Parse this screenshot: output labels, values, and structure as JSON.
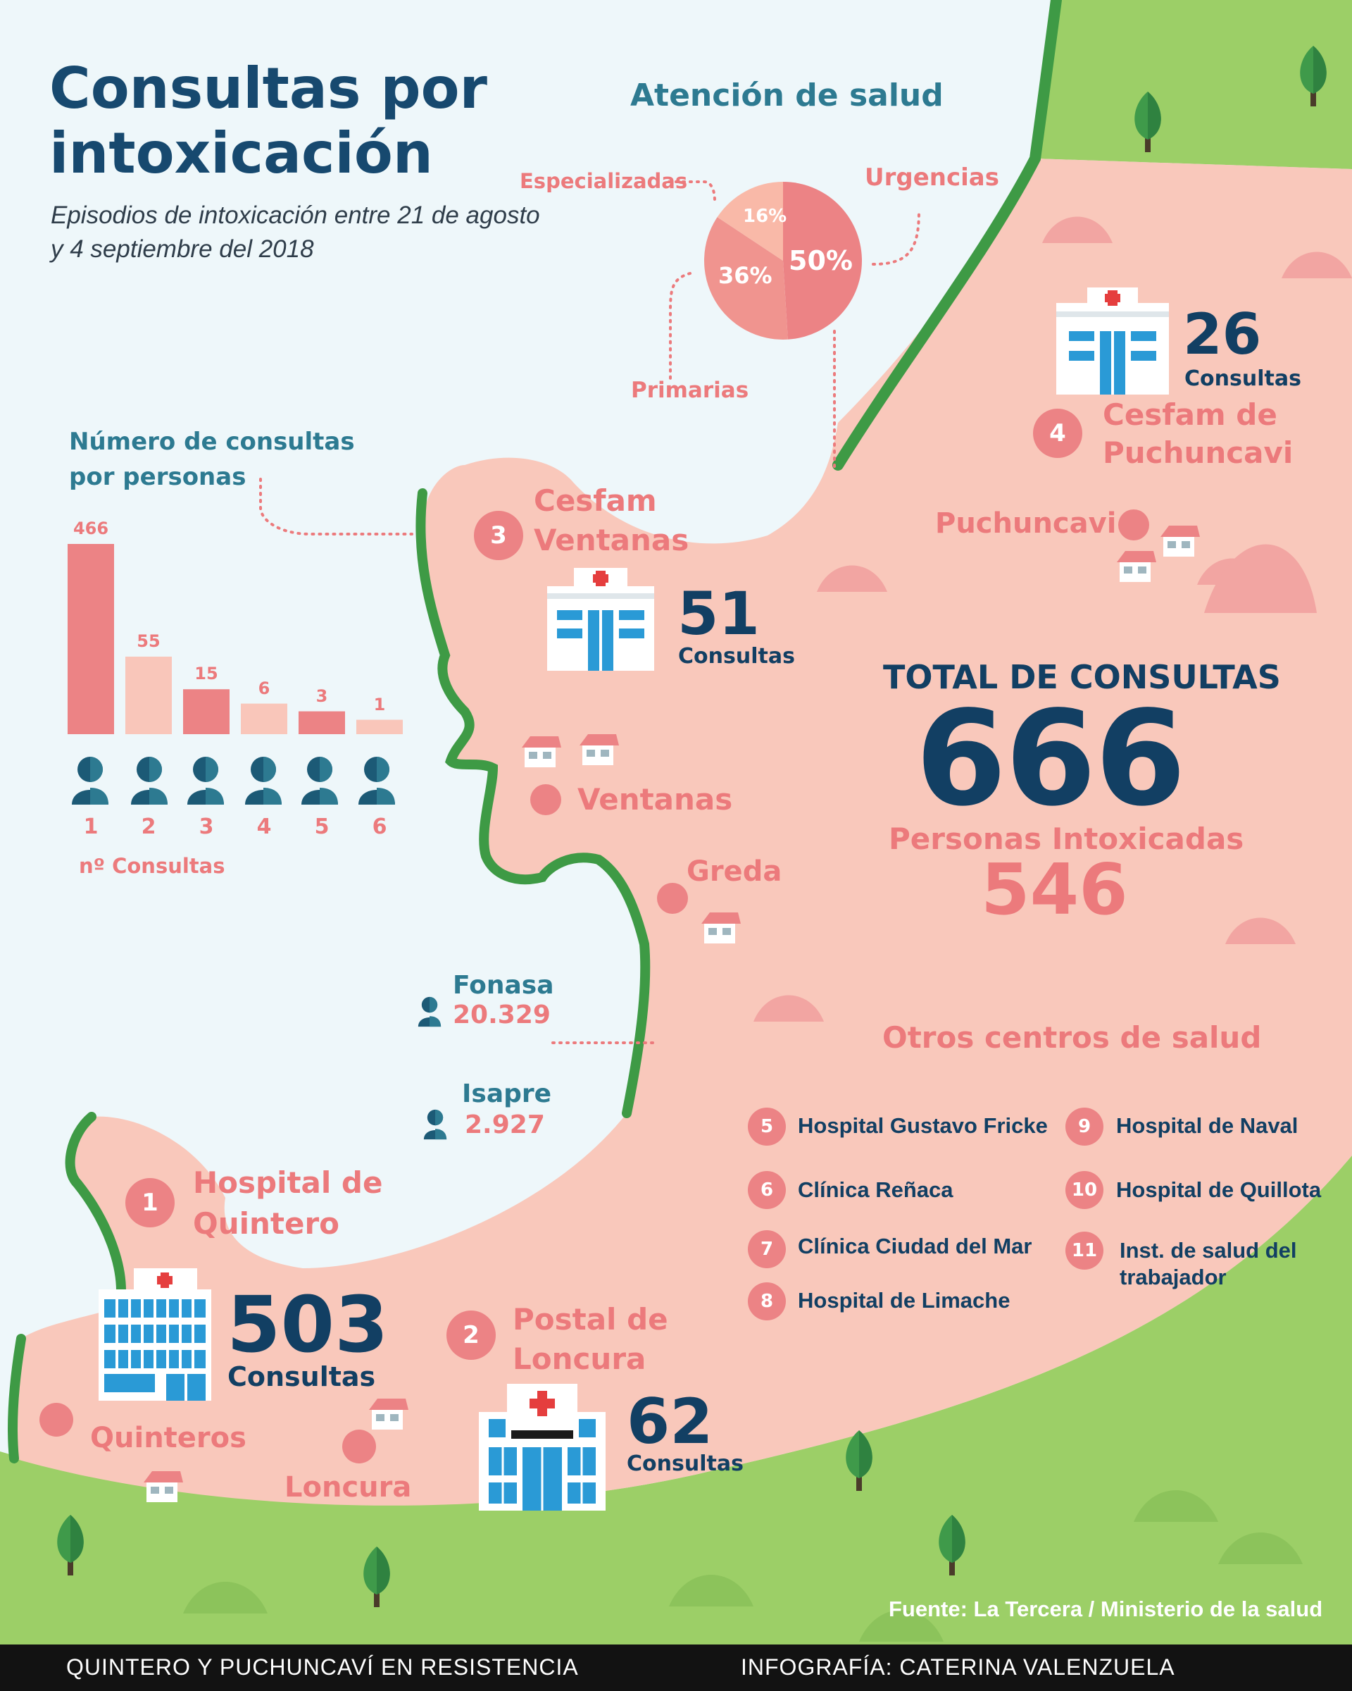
{
  "title": "Consultas por intoxicación",
  "subtitle": "Episodios de intoxicación entre 21 de agosto y 4 septiembre del 2018",
  "care": {
    "heading": "Atención de salud",
    "urgencias_label": "Urgencias",
    "especializadas_label": "Especializadas",
    "primarias_label": "Primarias",
    "urgencias_pct": "50%",
    "primarias_pct": "36%",
    "especializadas_pct": "16%"
  },
  "chart_data": {
    "type": "bar",
    "title": "Número de consultas por personas",
    "xlabel": "nº Consultas",
    "categories": [
      "1",
      "2",
      "3",
      "4",
      "5",
      "6"
    ],
    "values": [
      466,
      55,
      15,
      6,
      3,
      1
    ],
    "value_labels": [
      "466",
      "55",
      "15",
      "6",
      "3",
      "1"
    ],
    "colors": [
      "#ec8385",
      "#f9c6ba",
      "#ec8385",
      "#f9c6ba",
      "#ec8385",
      "#f9c6ba"
    ]
  },
  "pie_data": {
    "type": "pie",
    "slices": [
      {
        "label": "Urgencias",
        "value": 50
      },
      {
        "label": "Primarias",
        "value": 36
      },
      {
        "label": "Especializadas",
        "value": 16
      }
    ]
  },
  "totals": {
    "total_label": "TOTAL DE CONSULTAS",
    "total_value": "666",
    "persons_label": "Personas Intoxicadas",
    "persons_value": "546"
  },
  "centers": [
    {
      "num": "1",
      "name_line1": "Hospital de",
      "name_line2": "Quintero",
      "count": "503",
      "unit": "Consultas"
    },
    {
      "num": "2",
      "name_line1": "Postal de",
      "name_line2": "Loncura",
      "count": "62",
      "unit": "Consultas"
    },
    {
      "num": "3",
      "name_line1": "Cesfam",
      "name_line2": "Ventanas",
      "count": "51",
      "unit": "Consultas"
    },
    {
      "num": "4",
      "name_line1": "Cesfam de",
      "name_line2": "Puchuncavi",
      "count": "26",
      "unit": "Consultas"
    }
  ],
  "places": {
    "puchuncavi": "Puchuncavi",
    "ventanas": "Ventanas",
    "greda": "Greda",
    "quinteros": "Quinteros",
    "loncura": "Loncura"
  },
  "insurance": {
    "fonasa_label": "Fonasa",
    "fonasa_value": "20.329",
    "isapre_label": "Isapre",
    "isapre_value": "2.927"
  },
  "others": {
    "heading": "Otros centros de salud",
    "items": [
      {
        "num": "5",
        "name": "Hospital Gustavo Fricke"
      },
      {
        "num": "6",
        "name": "Clínica Reñaca"
      },
      {
        "num": "7",
        "name": "Clínica Ciudad del Mar"
      },
      {
        "num": "8",
        "name": "Hospital de Limache"
      },
      {
        "num": "9",
        "name": "Hospital de Naval"
      },
      {
        "num": "10",
        "name": "Hospital de Quillota"
      },
      {
        "num": "11",
        "name": "Inst. de salud del trabajador"
      }
    ]
  },
  "source": "Fuente: La Tercera / Ministerio de la salud",
  "footer": {
    "left": "QUINTERO Y PUCHUNCAVÍ EN RESISTENCIA",
    "right": "INFOGRAFÍA: CATERINA VALENZUELA"
  },
  "colors": {
    "sea": "#eef7fa",
    "land": "#f9c8bb",
    "grass": "#9ccf67",
    "coast": "#3e9a45",
    "navy": "#123f63",
    "teal": "#2d7a91",
    "salmon": "#ec7a7c"
  }
}
